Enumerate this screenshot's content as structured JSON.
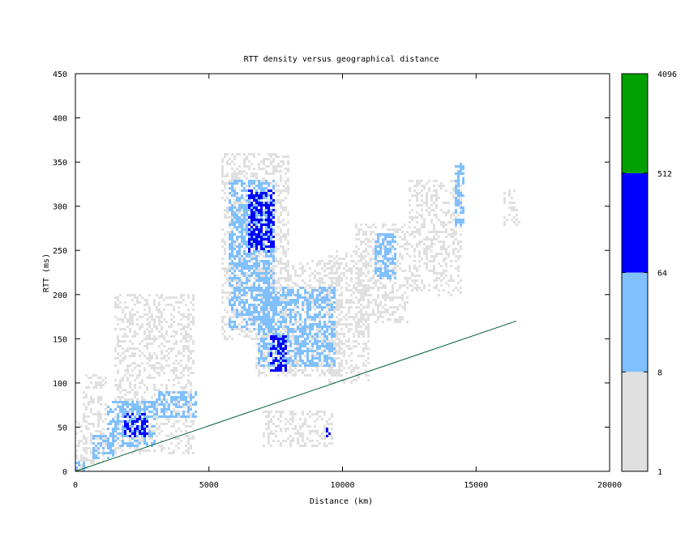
{
  "chart_data": {
    "type": "heatmap",
    "title": "RTT density versus geographical distance",
    "xlabel": "Distance (km)",
    "ylabel": "RTT (ms)",
    "xlim": [
      0,
      20000
    ],
    "ylim": [
      0,
      450
    ],
    "x_ticks": [
      0,
      5000,
      10000,
      15000,
      20000
    ],
    "y_ticks": [
      0,
      50,
      100,
      150,
      200,
      250,
      300,
      350,
      400,
      450
    ],
    "grid": false,
    "colorbar": {
      "scale": "log",
      "ticks": [
        "1",
        "8",
        "64",
        "512",
        "4096"
      ],
      "bins": [
        {
          "from": 1,
          "to": 8,
          "color": "#e0e0e0"
        },
        {
          "from": 8,
          "to": 64,
          "color": "#80c0ff"
        },
        {
          "from": 64,
          "to": 512,
          "color": "#0000ff"
        },
        {
          "from": 512,
          "to": 4096,
          "color": "#00a000"
        }
      ]
    },
    "reference_line": {
      "color": "#006030",
      "points": [
        [
          0,
          0
        ],
        [
          16500,
          170
        ]
      ]
    },
    "density_clusters": [
      {
        "x": [
          0,
          400
        ],
        "y": [
          0,
          60
        ],
        "level": 1
      },
      {
        "x": [
          0,
          300
        ],
        "y": [
          0,
          10
        ],
        "level": 2
      },
      {
        "x": [
          300,
          1200
        ],
        "y": [
          10,
          110
        ],
        "level": 1
      },
      {
        "x": [
          600,
          1400
        ],
        "y": [
          15,
          40
        ],
        "level": 2
      },
      {
        "x": [
          1200,
          3000
        ],
        "y": [
          30,
          80
        ],
        "level": 2
      },
      {
        "x": [
          1800,
          2700
        ],
        "y": [
          40,
          65
        ],
        "level": 3
      },
      {
        "x": [
          1500,
          4500
        ],
        "y": [
          20,
          200
        ],
        "level": 1
      },
      {
        "x": [
          3000,
          4500
        ],
        "y": [
          60,
          90
        ],
        "level": 2
      },
      {
        "x": [
          5500,
          8000
        ],
        "y": [
          150,
          360
        ],
        "level": 1
      },
      {
        "x": [
          5700,
          7400
        ],
        "y": [
          160,
          330
        ],
        "level": 2
      },
      {
        "x": [
          6500,
          7500
        ],
        "y": [
          250,
          320
        ],
        "level": 3
      },
      {
        "x": [
          6700,
          9900
        ],
        "y": [
          110,
          240
        ],
        "level": 1
      },
      {
        "x": [
          6800,
          9700
        ],
        "y": [
          120,
          210
        ],
        "level": 2
      },
      {
        "x": [
          7300,
          7900
        ],
        "y": [
          115,
          155
        ],
        "level": 3
      },
      {
        "x": [
          9500,
          11000
        ],
        "y": [
          100,
          250
        ],
        "level": 1
      },
      {
        "x": [
          10500,
          12500
        ],
        "y": [
          170,
          280
        ],
        "level": 1
      },
      {
        "x": [
          11200,
          12000
        ],
        "y": [
          220,
          270
        ],
        "level": 2
      },
      {
        "x": [
          12500,
          14500
        ],
        "y": [
          200,
          330
        ],
        "level": 1
      },
      {
        "x": [
          14200,
          14500
        ],
        "y": [
          280,
          350
        ],
        "level": 2
      },
      {
        "x": [
          16000,
          16600
        ],
        "y": [
          280,
          320
        ],
        "level": 1
      },
      {
        "x": [
          7000,
          9600
        ],
        "y": [
          30,
          70
        ],
        "level": 1
      },
      {
        "x": [
          9400,
          9500
        ],
        "y": [
          40,
          50
        ],
        "level": 3
      }
    ]
  }
}
